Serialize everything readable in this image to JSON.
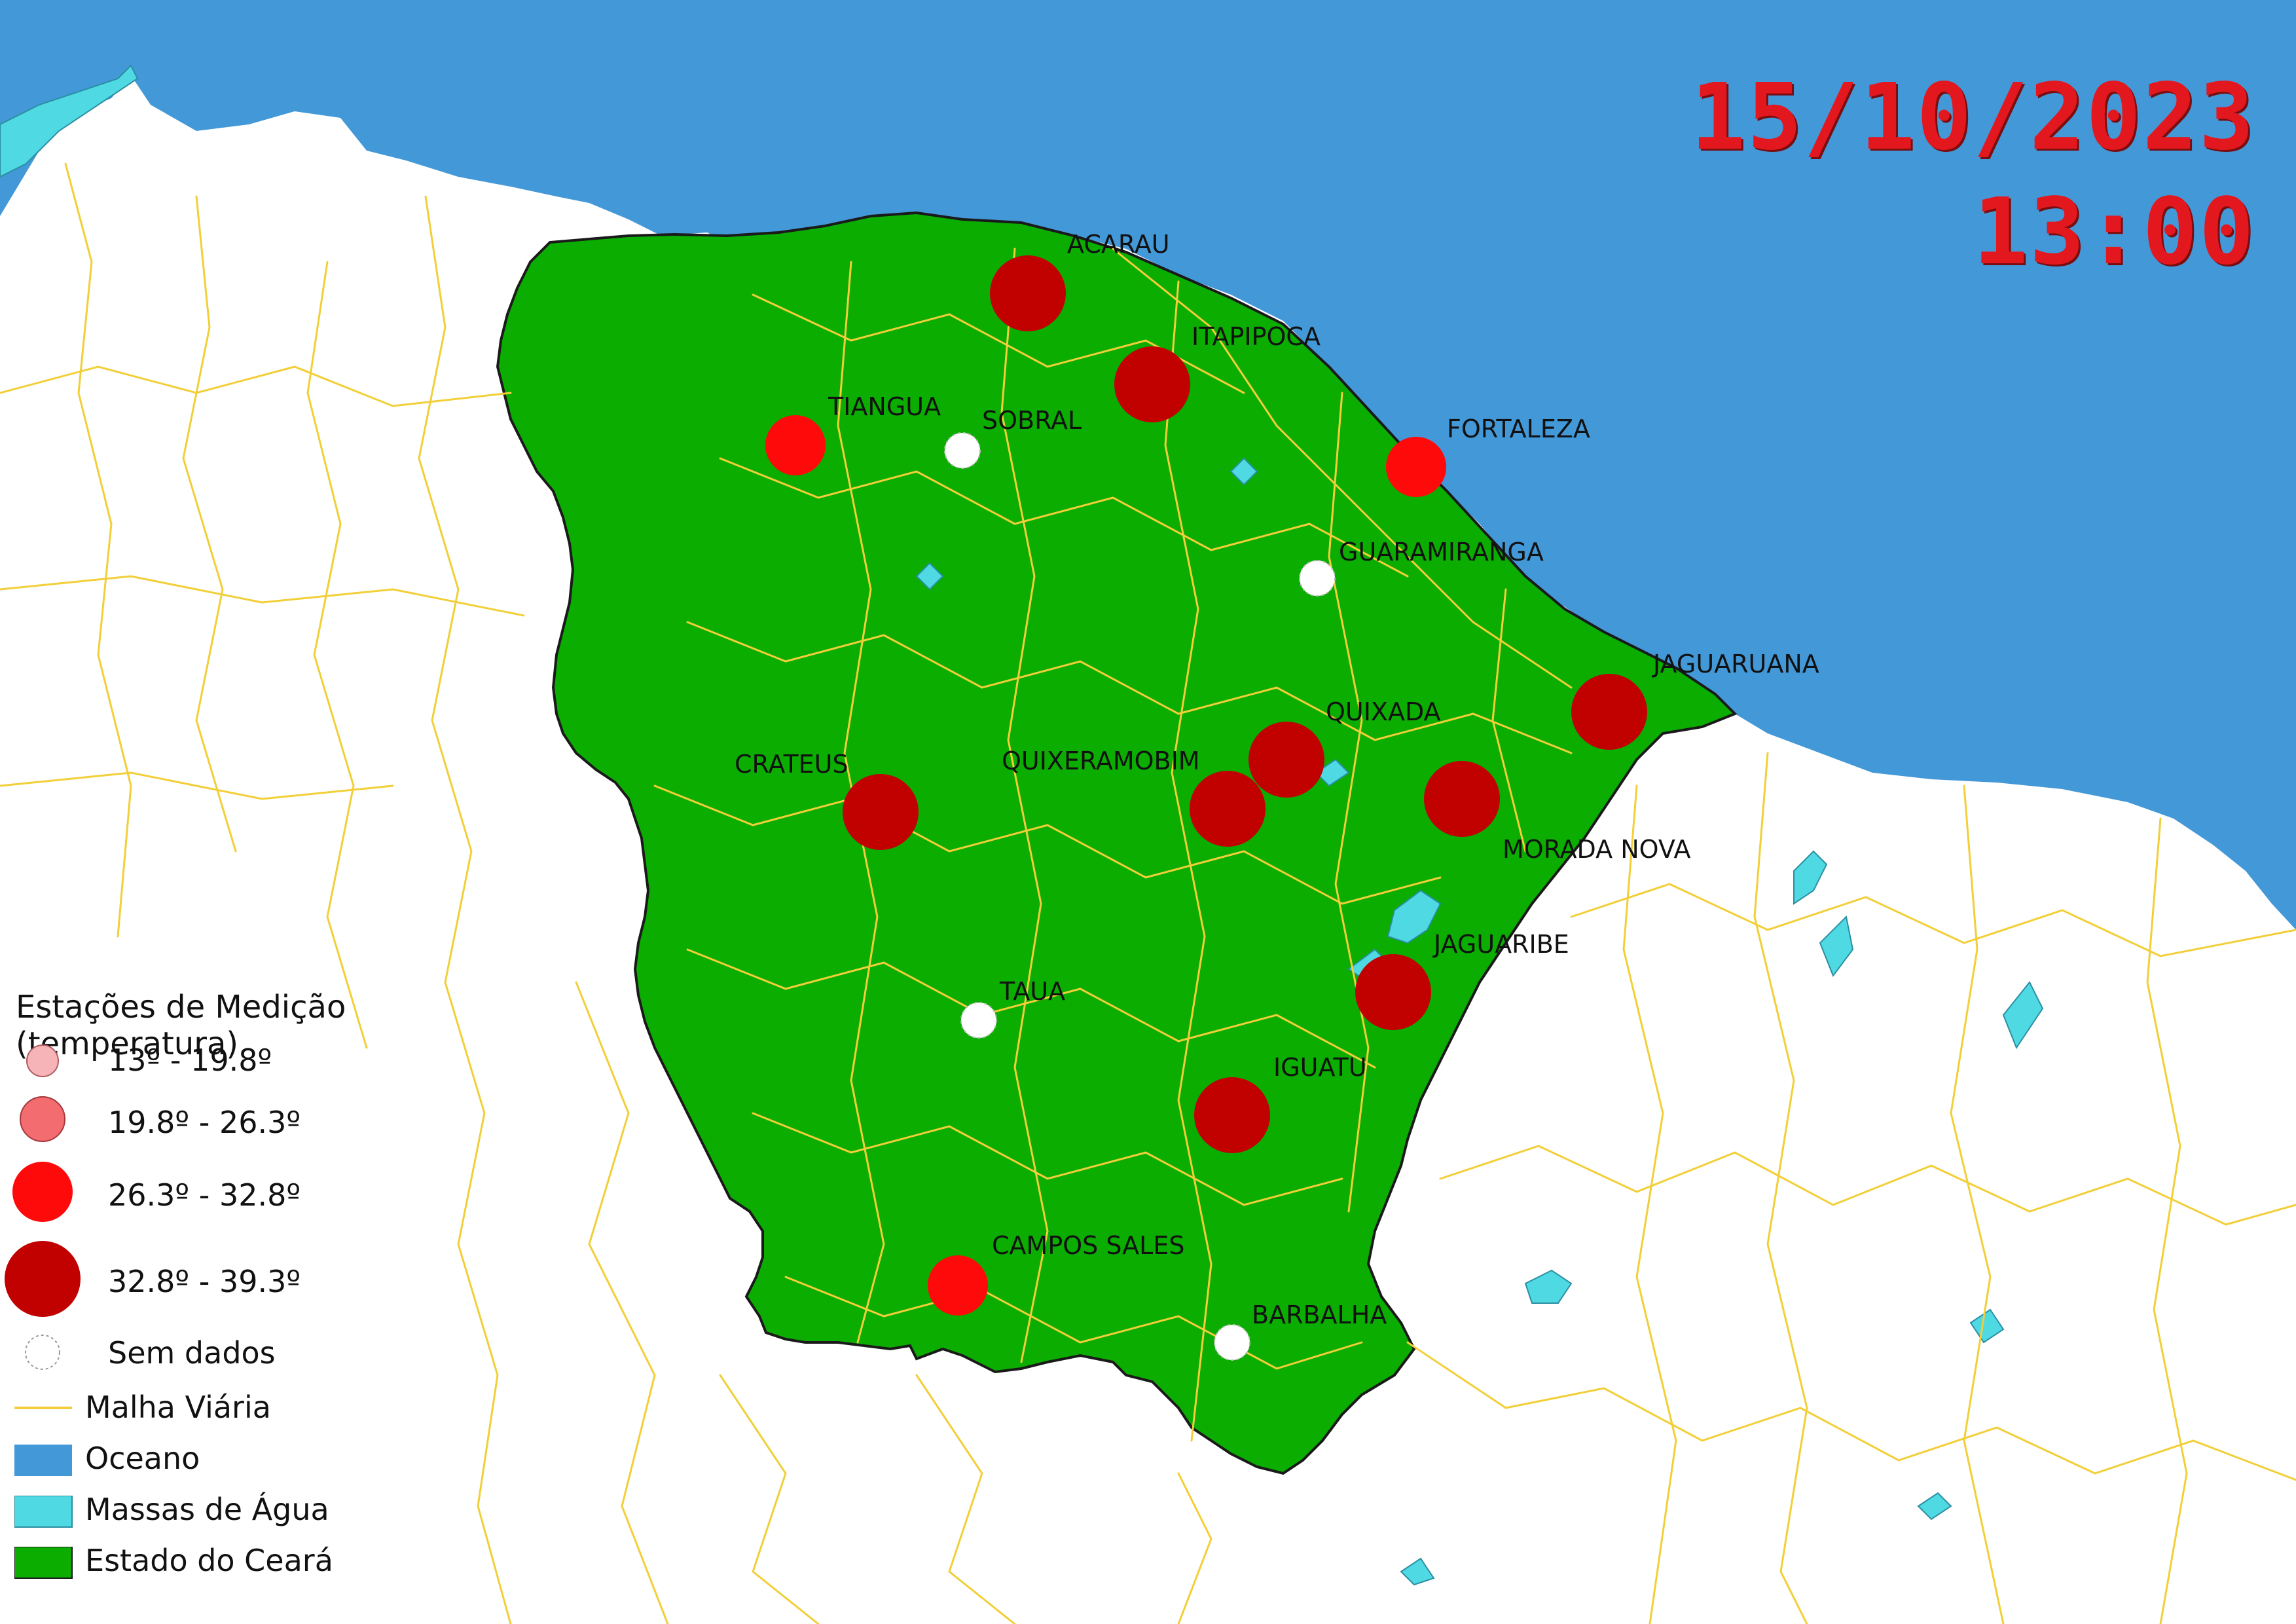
{
  "header": {
    "date": "15/10/2023",
    "time": "13:00"
  },
  "colors": {
    "ocean": "#4398d8",
    "water": "#4fd9e3",
    "state": "#0aad00",
    "land": "#ffffff",
    "roads": "#f2cf38",
    "class1": "#f7b4b8",
    "class2": "#f26c70",
    "class3": "#ff0a0a",
    "class4": "#c10000",
    "nodata": "#ffffff"
  },
  "legend": {
    "title": "Estações de Medição (temperatura)",
    "classes": [
      {
        "label": "13º - 19.8º",
        "icon": "small-pink-circle"
      },
      {
        "label": "19.8º - 26.3º",
        "icon": "salmon-circle"
      },
      {
        "label": "26.3º - 32.8º",
        "icon": "red-circle"
      },
      {
        "label": "32.8º - 39.3º",
        "icon": "dark-red-circle"
      },
      {
        "label": "Sem dados",
        "icon": "dashed-circle"
      }
    ],
    "layers": [
      {
        "label": "Malha Viária",
        "icon": "road-line"
      },
      {
        "label": "Oceano",
        "icon": "ocean-swatch"
      },
      {
        "label": "Massas de Água",
        "icon": "water-swatch"
      },
      {
        "label": "Estado do Ceará",
        "icon": "state-swatch"
      }
    ]
  },
  "stations": [
    {
      "name": "ACARAU",
      "class": 4
    },
    {
      "name": "ITAPIPOCA",
      "class": 4
    },
    {
      "name": "TIANGUA",
      "class": 3
    },
    {
      "name": "SOBRAL",
      "class": 0
    },
    {
      "name": "FORTALEZA",
      "class": 3
    },
    {
      "name": "GUARAMIRANGA",
      "class": 0
    },
    {
      "name": "JAGUARUANA",
      "class": 4
    },
    {
      "name": "QUIXADA",
      "class": 4
    },
    {
      "name": "QUIXERAMOBIM",
      "class": 4
    },
    {
      "name": "CRATEUS",
      "class": 4
    },
    {
      "name": "MORADA NOVA",
      "class": 4
    },
    {
      "name": "JAGUARIBE",
      "class": 4
    },
    {
      "name": "TAUA",
      "class": 0
    },
    {
      "name": "IGUATU",
      "class": 4
    },
    {
      "name": "CAMPOS SALES",
      "class": 3
    },
    {
      "name": "BARBALHA",
      "class": 0
    }
  ]
}
